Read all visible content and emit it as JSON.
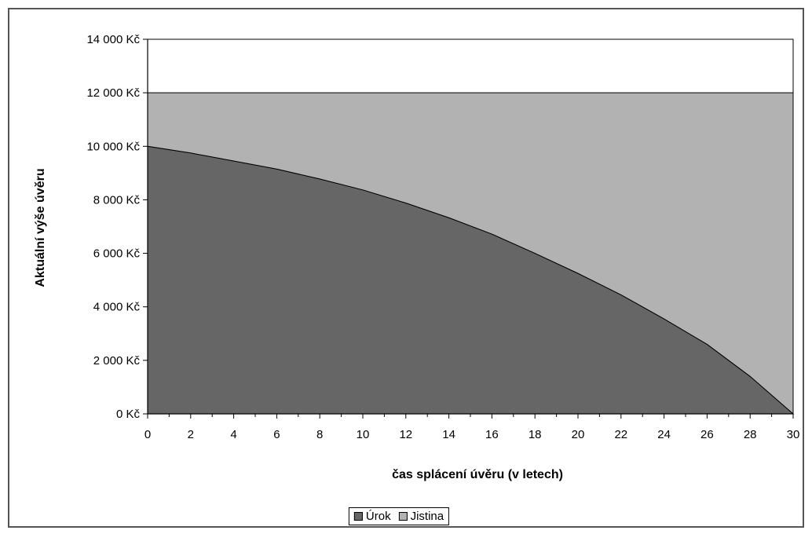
{
  "chart_data": {
    "type": "area",
    "xlabel": "čas splácení úvěru (v letech)",
    "ylabel": "Aktuální výše úvěru",
    "xlim": [
      0,
      30
    ],
    "ylim": [
      0,
      14000
    ],
    "x_ticks": [
      "0",
      "2",
      "4",
      "6",
      "8",
      "10",
      "12",
      "14",
      "16",
      "18",
      "20",
      "22",
      "24",
      "26",
      "28",
      "30"
    ],
    "y_ticks": [
      "0 Kč",
      "2 000 Kč",
      "4 000 Kč",
      "6 000 Kč",
      "8 000 Kč",
      "10 000 Kč",
      "12 000 Kč",
      "14 000 Kč"
    ],
    "x": [
      0,
      2,
      4,
      6,
      8,
      10,
      12,
      14,
      16,
      18,
      20,
      22,
      24,
      26,
      28,
      30
    ],
    "series": [
      {
        "name": "Úrok",
        "color": "#666666",
        "values": [
          10000,
          9750,
          9450,
          9150,
          8780,
          8370,
          7880,
          7330,
          6720,
          6000,
          5250,
          4450,
          3550,
          2600,
          1400,
          0
        ]
      },
      {
        "name": "Jistina",
        "color": "#b2b2b2",
        "values": [
          2000,
          2250,
          2550,
          2850,
          3220,
          3630,
          4120,
          4670,
          5280,
          6000,
          6750,
          7550,
          8450,
          9400,
          10600,
          12000
        ]
      }
    ],
    "legend_position": "bottom",
    "grid": false
  }
}
